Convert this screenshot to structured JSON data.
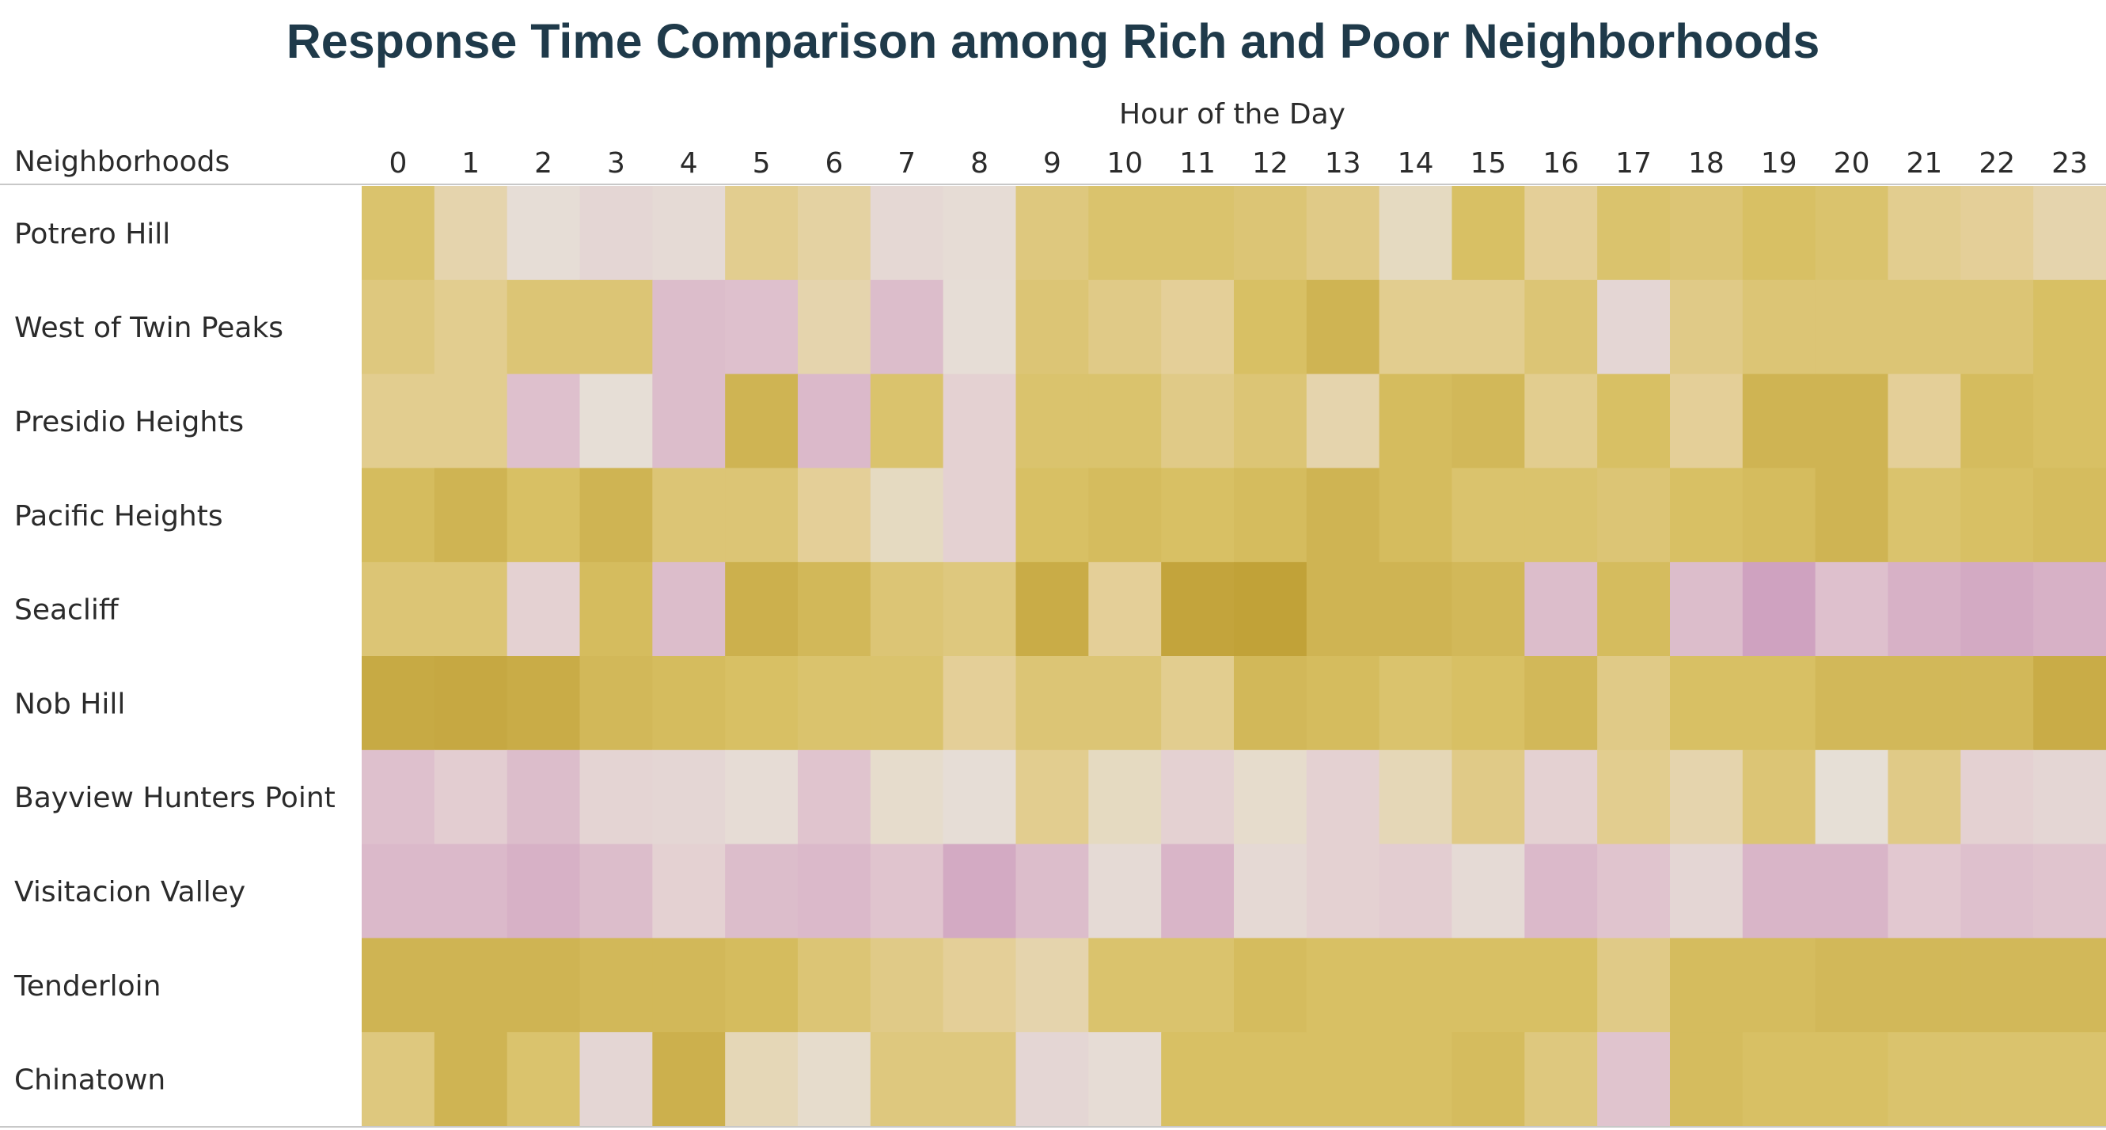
{
  "chart_data": {
    "type": "heatmap",
    "title": "Response Time Comparison among Rich and Poor Neighborhoods",
    "xlabel": "Hour of the Day",
    "ylabel": "Neighborhoods",
    "x": [
      "0",
      "1",
      "2",
      "3",
      "4",
      "5",
      "6",
      "7",
      "8",
      "9",
      "10",
      "11",
      "12",
      "13",
      "14",
      "15",
      "16",
      "17",
      "18",
      "19",
      "20",
      "21",
      "22",
      "23"
    ],
    "y": [
      "Potrero Hill",
      "West of Twin Peaks",
      "Presidio Heights",
      "Pacific Heights",
      "Seacliff",
      "Nob Hill",
      "Bayview Hunters Point",
      "Visitacion Valley",
      "Tenderloin",
      "Chinatown"
    ],
    "colors": {
      "gold_dark": "#c0a036",
      "gold_mid": "#d8c064",
      "gold_light": "#e4cf98",
      "neutral": "#e6dfd6",
      "pink_light": "#e2c8d0",
      "pink_dark": "#c68fb8"
    },
    "values": [
      [
        0.55,
        0.2,
        -0.02,
        -0.1,
        -0.05,
        0.35,
        0.25,
        -0.08,
        -0.03,
        0.45,
        0.55,
        0.55,
        0.5,
        0.4,
        0.1,
        0.6,
        0.3,
        0.55,
        0.5,
        0.6,
        0.55,
        0.35,
        0.3,
        0.2
      ],
      [
        0.45,
        0.35,
        0.5,
        0.5,
        -0.4,
        -0.35,
        0.2,
        -0.4,
        -0.02,
        0.5,
        0.4,
        0.3,
        0.6,
        0.75,
        0.35,
        0.35,
        0.5,
        -0.1,
        0.4,
        0.5,
        0.5,
        0.5,
        0.5,
        0.6
      ],
      [
        0.35,
        0.35,
        -0.35,
        -0.01,
        -0.4,
        0.75,
        -0.45,
        0.55,
        -0.15,
        0.55,
        0.55,
        0.4,
        0.5,
        0.2,
        0.65,
        0.7,
        0.35,
        0.6,
        0.3,
        0.75,
        0.75,
        0.3,
        0.65,
        0.6
      ],
      [
        0.65,
        0.75,
        0.6,
        0.75,
        0.5,
        0.5,
        0.3,
        0.1,
        -0.15,
        0.6,
        0.65,
        0.6,
        0.65,
        0.75,
        0.65,
        0.55,
        0.55,
        0.5,
        0.6,
        0.65,
        0.75,
        0.55,
        0.6,
        0.65
      ],
      [
        0.5,
        0.5,
        -0.15,
        0.65,
        -0.4,
        0.8,
        0.7,
        0.5,
        0.45,
        0.85,
        0.3,
        0.95,
        0.98,
        0.75,
        0.75,
        0.7,
        -0.4,
        0.65,
        -0.4,
        -0.75,
        -0.35,
        -0.55,
        -0.65,
        -0.55
      ],
      [
        0.88,
        0.9,
        0.85,
        0.7,
        0.65,
        0.6,
        0.55,
        0.55,
        0.3,
        0.5,
        0.5,
        0.35,
        0.7,
        0.65,
        0.55,
        0.6,
        0.7,
        0.4,
        0.6,
        0.6,
        0.7,
        0.7,
        0.7,
        0.85
      ],
      [
        -0.35,
        -0.2,
        -0.4,
        -0.12,
        -0.1,
        -0.03,
        -0.3,
        0.05,
        -0.02,
        0.35,
        0.1,
        -0.15,
        0.05,
        -0.15,
        0.15,
        0.4,
        -0.15,
        0.35,
        0.2,
        0.5,
        0.0,
        0.4,
        -0.15,
        -0.1
      ],
      [
        -0.45,
        -0.45,
        -0.55,
        -0.4,
        -0.15,
        -0.4,
        -0.45,
        -0.3,
        -0.65,
        -0.4,
        -0.05,
        -0.5,
        -0.07,
        -0.15,
        -0.2,
        -0.05,
        -0.45,
        -0.3,
        -0.1,
        -0.5,
        -0.5,
        -0.25,
        -0.35,
        -0.3
      ],
      [
        0.75,
        0.75,
        0.75,
        0.7,
        0.7,
        0.65,
        0.5,
        0.4,
        0.3,
        0.2,
        0.55,
        0.55,
        0.65,
        0.6,
        0.6,
        0.6,
        0.6,
        0.4,
        0.65,
        0.65,
        0.7,
        0.7,
        0.7,
        0.7
      ],
      [
        0.45,
        0.75,
        0.55,
        -0.1,
        0.8,
        0.15,
        0.05,
        0.45,
        0.45,
        -0.1,
        -0.03,
        0.6,
        0.6,
        0.6,
        0.6,
        0.65,
        0.45,
        -0.3,
        0.65,
        0.6,
        0.6,
        0.55,
        0.55,
        0.55
      ]
    ]
  }
}
